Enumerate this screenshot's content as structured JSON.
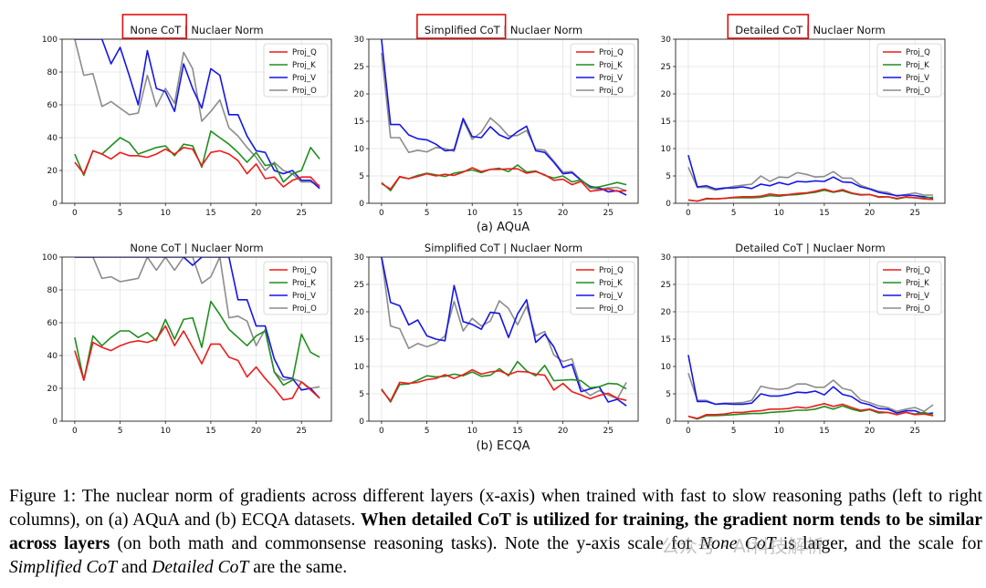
{
  "colors": {
    "Proj_Q": "#ee1c1c",
    "Proj_K": "#1f8f1f",
    "Proj_V": "#1515e8",
    "Proj_O": "#8c8c8c",
    "highlight_box": "#e01010"
  },
  "subcaptions": [
    "(a) AQuA",
    "(b) ECQA"
  ],
  "caption": {
    "part1": "Figure 1: The nuclear norm of gradients across different layers (x-axis) when trained with fast to slow reasoning paths (left to right columns), on (a) AQuA and (b) ECQA datasets.",
    "bold": "When detailed CoT is utilized for training, the gradient norm tends to be similar across layers",
    "part2": "(on both math and commonsense reasoning tasks). Note the y-axis scale for",
    "em1": "None CoT",
    "part3": "is larger, and the scale for",
    "em2": "Simplified CoT",
    "part4": "and",
    "em3": "Detailed CoT",
    "part5": "are the same."
  },
  "watermark": "公众号 · AI科技解析",
  "chart_data": [
    {
      "type": "line",
      "dataset": "AQuA",
      "title": "None CoT | Nuclaer Norm",
      "highlight": "None CoT",
      "x": [
        0,
        1,
        2,
        3,
        4,
        5,
        6,
        7,
        8,
        9,
        10,
        11,
        12,
        13,
        14,
        15,
        16,
        17,
        18,
        19,
        20,
        21,
        22,
        23,
        24,
        25,
        26,
        27
      ],
      "xticks": [
        0,
        5,
        10,
        15,
        20,
        25
      ],
      "ylim": [
        0,
        100
      ],
      "yticks": [
        0,
        20,
        40,
        60,
        80,
        100
      ],
      "grid": true,
      "legend": "top-right",
      "series": [
        {
          "name": "Proj_Q",
          "values": [
            25,
            18,
            32,
            30,
            27,
            31,
            29,
            29,
            28,
            30,
            33,
            30,
            34,
            33,
            23,
            31,
            32,
            30,
            26,
            18,
            24,
            15,
            16,
            10,
            14,
            16,
            16,
            10
          ]
        },
        {
          "name": "Proj_K",
          "values": [
            30,
            17,
            32,
            30,
            35,
            40,
            37,
            30,
            32,
            34,
            35,
            29,
            36,
            35,
            22,
            44,
            40,
            36,
            31,
            25,
            31,
            23,
            24,
            13,
            18,
            20,
            34,
            27
          ]
        },
        {
          "name": "Proj_V",
          "values": [
            100,
            100,
            100,
            100,
            85,
            95,
            78,
            60,
            93,
            70,
            68,
            56,
            85,
            70,
            58,
            82,
            78,
            54,
            54,
            41,
            32,
            31,
            20,
            18,
            20,
            14,
            14,
            9
          ]
        },
        {
          "name": "Proj_O",
          "values": [
            100,
            78,
            79,
            59,
            62,
            58,
            54,
            55,
            78,
            59,
            70,
            61,
            92,
            82,
            50,
            56,
            63,
            46,
            41,
            34,
            28,
            20,
            25,
            20,
            18,
            13,
            13,
            11
          ]
        }
      ]
    },
    {
      "type": "line",
      "dataset": "AQuA",
      "title": "Simplified CoT | Nuclaer Norm",
      "highlight": "Simplified CoT",
      "x": [
        0,
        1,
        2,
        3,
        4,
        5,
        6,
        7,
        8,
        9,
        10,
        11,
        12,
        13,
        14,
        15,
        16,
        17,
        18,
        19,
        20,
        21,
        22,
        23,
        24,
        25,
        26,
        27
      ],
      "xticks": [
        0,
        5,
        10,
        15,
        20,
        25
      ],
      "ylim": [
        0,
        30
      ],
      "yticks": [
        0,
        5,
        10,
        15,
        20,
        25,
        30
      ],
      "grid": true,
      "legend": "top-right",
      "series": [
        {
          "name": "Proj_Q",
          "values": [
            3.6,
            2.6,
            4.9,
            4.5,
            4.9,
            5.4,
            5.0,
            5.3,
            5.1,
            5.7,
            6.5,
            5.8,
            6.2,
            6.2,
            6.3,
            6.3,
            5.5,
            5.8,
            5.2,
            4.2,
            4.4,
            3.4,
            4.0,
            2.2,
            2.4,
            2.6,
            2.2,
            2.3
          ]
        },
        {
          "name": "Proj_K",
          "values": [
            3.8,
            2.3,
            4.8,
            4.5,
            5.1,
            5.5,
            5.2,
            4.9,
            5.5,
            5.8,
            6.1,
            5.6,
            6.2,
            6.4,
            5.8,
            7.0,
            5.7,
            5.9,
            5.1,
            4.6,
            5.0,
            3.9,
            4.3,
            2.9,
            3.0,
            3.4,
            3.8,
            3.4
          ]
        },
        {
          "name": "Proj_V",
          "values": [
            30,
            14.4,
            14.4,
            12.5,
            11.8,
            11.6,
            10.8,
            9.6,
            9.8,
            15.5,
            12.2,
            12.0,
            14.0,
            12.5,
            11.8,
            13.1,
            14.1,
            9.6,
            9.3,
            7.5,
            5.4,
            5.6,
            4.2,
            3.1,
            2.8,
            2.1,
            2.3,
            1.5
          ]
        },
        {
          "name": "Proj_O",
          "values": [
            27.5,
            12.0,
            12.0,
            9.3,
            9.7,
            9.4,
            10.2,
            10.0,
            9.5,
            15.2,
            11.7,
            13.0,
            15.6,
            14.2,
            12.3,
            12.4,
            13.3,
            9.9,
            9.7,
            7.7,
            5.7,
            5.8,
            4.3,
            2.8,
            2.6,
            2.8,
            2.9,
            2.3
          ]
        }
      ]
    },
    {
      "type": "line",
      "dataset": "AQuA",
      "title": "Detailed CoT | Nuclaer Norm",
      "highlight": "Detailed CoT",
      "x": [
        0,
        1,
        2,
        3,
        4,
        5,
        6,
        7,
        8,
        9,
        10,
        11,
        12,
        13,
        14,
        15,
        16,
        17,
        18,
        19,
        20,
        21,
        22,
        23,
        24,
        25,
        26,
        27
      ],
      "xticks": [
        0,
        5,
        10,
        15,
        20,
        25
      ],
      "ylim": [
        0,
        30
      ],
      "yticks": [
        0,
        5,
        10,
        15,
        20,
        25,
        30
      ],
      "grid": true,
      "legend": "top-right",
      "series": [
        {
          "name": "Proj_Q",
          "values": [
            0.6,
            0.4,
            0.9,
            0.8,
            0.9,
            1.1,
            1.2,
            1.2,
            1.3,
            1.7,
            1.5,
            1.6,
            1.8,
            1.9,
            2.2,
            2.6,
            2.1,
            2.5,
            1.9,
            1.6,
            1.6,
            1.2,
            1.2,
            0.9,
            1.2,
            1.0,
            0.8,
            0.7
          ]
        },
        {
          "name": "Proj_K",
          "values": [
            0.6,
            0.4,
            0.8,
            0.8,
            0.9,
            1.0,
            1.0,
            1.0,
            1.1,
            1.4,
            1.3,
            1.5,
            1.6,
            1.8,
            2.0,
            2.4,
            2.0,
            2.3,
            1.8,
            1.5,
            1.6,
            1.1,
            1.2,
            0.8,
            1.1,
            1.0,
            1.0,
            1.1
          ]
        },
        {
          "name": "Proj_V",
          "values": [
            8.8,
            3.0,
            3.2,
            2.6,
            2.8,
            2.8,
            3.0,
            2.7,
            3.5,
            3.2,
            3.8,
            3.4,
            4.0,
            3.9,
            4.1,
            4.0,
            4.8,
            3.9,
            3.8,
            3.0,
            2.6,
            2.0,
            1.7,
            1.4,
            1.5,
            1.4,
            1.2,
            0.9
          ]
        },
        {
          "name": "Proj_O",
          "values": [
            6.6,
            2.9,
            2.9,
            2.4,
            2.7,
            3.1,
            3.3,
            3.5,
            5.0,
            4.0,
            4.8,
            4.7,
            5.6,
            5.3,
            4.8,
            4.9,
            5.8,
            4.6,
            4.6,
            3.3,
            2.7,
            2.2,
            2.0,
            1.3,
            1.6,
            1.9,
            1.5,
            1.5
          ]
        }
      ]
    },
    {
      "type": "line",
      "dataset": "ECQA",
      "title": "None CoT | Nuclaer Norm",
      "x": [
        0,
        1,
        2,
        3,
        4,
        5,
        6,
        7,
        8,
        9,
        10,
        11,
        12,
        13,
        14,
        15,
        16,
        17,
        18,
        19,
        20,
        21,
        22,
        23,
        24,
        25,
        26,
        27
      ],
      "xticks": [
        0,
        5,
        10,
        15,
        20,
        25
      ],
      "ylim": [
        0,
        100
      ],
      "yticks": [
        0,
        20,
        40,
        60,
        80,
        100
      ],
      "grid": true,
      "legend": "top-right",
      "series": [
        {
          "name": "Proj_Q",
          "values": [
            43,
            25,
            48,
            45,
            43,
            46,
            48,
            49,
            48,
            50,
            58,
            46,
            55,
            45,
            35,
            47,
            47,
            39,
            37,
            27,
            33,
            26,
            20,
            13,
            14,
            24,
            19,
            14
          ]
        },
        {
          "name": "Proj_K",
          "values": [
            51,
            25,
            52,
            46,
            51,
            55,
            55,
            51,
            54,
            49,
            62,
            50,
            62,
            63,
            45,
            73,
            65,
            56,
            51,
            46,
            52,
            55,
            30,
            22,
            25,
            53,
            42,
            39
          ]
        },
        {
          "name": "Proj_V",
          "values": [
            100,
            100,
            100,
            100,
            100,
            100,
            100,
            100,
            100,
            100,
            100,
            100,
            100,
            95,
            100,
            100,
            100,
            100,
            74,
            74,
            58,
            58,
            38,
            27,
            26,
            19,
            20,
            14
          ]
        },
        {
          "name": "Proj_O",
          "values": [
            100,
            100,
            100,
            87,
            88,
            85,
            86,
            87,
            100,
            92,
            100,
            92,
            100,
            100,
            84,
            88,
            100,
            63,
            64,
            61,
            46,
            56,
            30,
            25,
            26,
            24,
            20,
            21
          ]
        }
      ]
    },
    {
      "type": "line",
      "dataset": "ECQA",
      "title": "Simplified CoT | Nuclaer Norm",
      "x": [
        0,
        1,
        2,
        3,
        4,
        5,
        6,
        7,
        8,
        9,
        10,
        11,
        12,
        13,
        14,
        15,
        16,
        17,
        18,
        19,
        20,
        21,
        22,
        23,
        24,
        25,
        26,
        27
      ],
      "xticks": [
        0,
        5,
        10,
        15,
        20,
        25
      ],
      "ylim": [
        0,
        30
      ],
      "yticks": [
        0,
        5,
        10,
        15,
        20,
        25,
        30
      ],
      "grid": true,
      "legend": "top-right",
      "series": [
        {
          "name": "Proj_Q",
          "values": [
            5.7,
            3.7,
            7.1,
            6.9,
            7.1,
            7.6,
            7.8,
            8.5,
            7.8,
            8.5,
            9.4,
            8.6,
            9.0,
            9.2,
            8.5,
            9.1,
            9.0,
            8.6,
            8.4,
            5.7,
            6.9,
            5.4,
            4.8,
            4.1,
            4.7,
            5.1,
            4.2,
            3.8
          ]
        },
        {
          "name": "Proj_K",
          "values": [
            5.9,
            3.5,
            6.7,
            6.8,
            7.5,
            8.3,
            8.1,
            8.2,
            8.6,
            8.3,
            9.0,
            8.2,
            8.4,
            9.6,
            8.3,
            10.9,
            9.2,
            8.3,
            10.2,
            7.4,
            7.5,
            7.6,
            7.4,
            6.1,
            6.3,
            6.9,
            6.8,
            5.9
          ]
        },
        {
          "name": "Proj_V",
          "values": [
            30,
            21.7,
            21.1,
            17.6,
            18.5,
            15.6,
            15.0,
            14.7,
            24.8,
            18.2,
            17.7,
            16.8,
            19.9,
            19.7,
            15.3,
            19.6,
            22.2,
            14.4,
            15.9,
            13.6,
            9.8,
            10.4,
            5.4,
            5.9,
            6.3,
            3.5,
            4.0,
            2.8
          ]
        },
        {
          "name": "Proj_O",
          "values": [
            30,
            17.4,
            16.9,
            13.3,
            14.2,
            13.6,
            14.2,
            15.6,
            21.9,
            16.5,
            18.8,
            17.4,
            18.3,
            22.0,
            20.6,
            17.6,
            21.0,
            15.6,
            16.4,
            12.1,
            10.9,
            11.4,
            6.1,
            4.7,
            5.6,
            4.8,
            4.1,
            7.1
          ]
        }
      ]
    },
    {
      "type": "line",
      "dataset": "ECQA",
      "title": "Detailed CoT | Nuclaer Norm",
      "x": [
        0,
        1,
        2,
        3,
        4,
        5,
        6,
        7,
        8,
        9,
        10,
        11,
        12,
        13,
        14,
        15,
        16,
        17,
        18,
        19,
        20,
        21,
        22,
        23,
        24,
        25,
        26,
        27
      ],
      "xticks": [
        0,
        5,
        10,
        15,
        20,
        25
      ],
      "ylim": [
        0,
        30
      ],
      "yticks": [
        0,
        5,
        10,
        15,
        20,
        25,
        30
      ],
      "grid": true,
      "legend": "top-right",
      "series": [
        {
          "name": "Proj_Q",
          "values": [
            0.9,
            0.5,
            1.2,
            1.2,
            1.3,
            1.6,
            1.6,
            1.8,
            1.9,
            2.2,
            2.2,
            2.3,
            2.6,
            2.4,
            2.8,
            3.2,
            2.7,
            3.1,
            2.5,
            2.0,
            2.2,
            1.7,
            1.6,
            1.2,
            1.6,
            1.2,
            1.3,
            1.0
          ]
        },
        {
          "name": "Proj_K",
          "values": [
            0.9,
            0.4,
            1.0,
            1.0,
            1.1,
            1.2,
            1.3,
            1.4,
            1.4,
            1.6,
            1.7,
            1.8,
            2.0,
            2.0,
            2.2,
            2.7,
            2.2,
            2.8,
            2.2,
            1.8,
            2.1,
            1.5,
            1.6,
            1.2,
            1.6,
            1.3,
            1.6,
            1.1
          ]
        },
        {
          "name": "Proj_V",
          "values": [
            12.1,
            3.6,
            3.6,
            3.1,
            3.2,
            3.1,
            3.1,
            3.3,
            5.0,
            4.6,
            4.6,
            4.9,
            5.3,
            5.2,
            5.5,
            4.8,
            6.3,
            4.9,
            4.5,
            3.4,
            3.0,
            2.3,
            2.2,
            1.5,
            1.9,
            1.9,
            1.3,
            1.5
          ]
        },
        {
          "name": "Proj_O",
          "values": [
            8.8,
            3.8,
            3.8,
            3.1,
            3.3,
            3.3,
            3.4,
            3.8,
            6.4,
            6.0,
            5.8,
            6.0,
            6.8,
            6.8,
            6.2,
            6.2,
            7.5,
            6.0,
            5.6,
            3.9,
            3.4,
            2.8,
            2.5,
            1.8,
            2.2,
            2.5,
            1.8,
            3.0
          ]
        }
      ]
    }
  ]
}
